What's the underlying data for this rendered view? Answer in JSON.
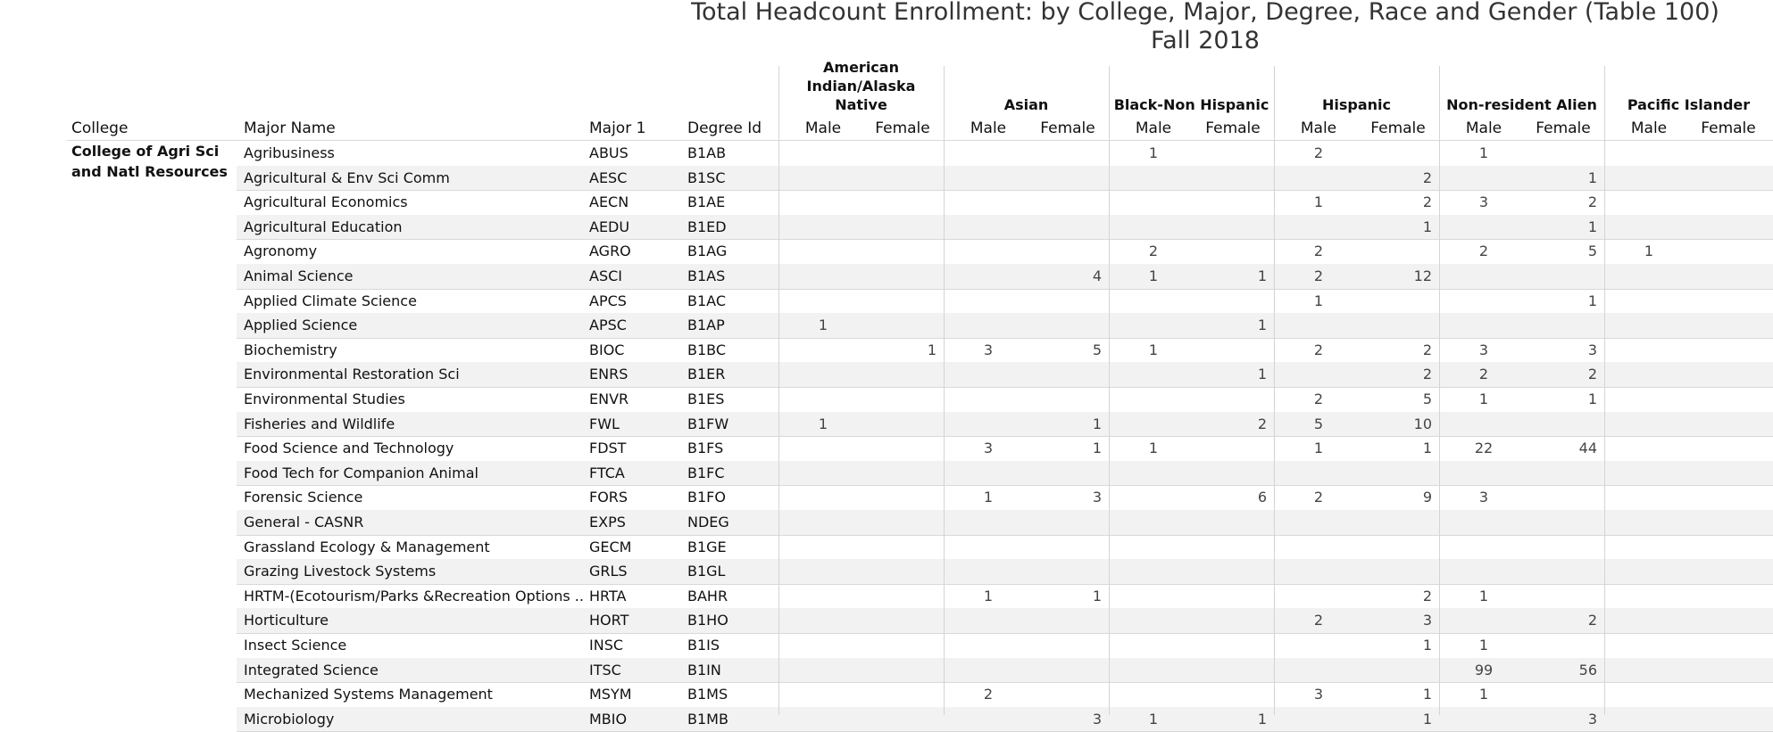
{
  "title_line1": "Total Headcount Enrollment: by College, Major, Degree, Race and Gender (Table 100)",
  "title_line2": "Fall 2018",
  "headers": {
    "college": "College",
    "major_name": "Major Name",
    "major1": "Major 1",
    "degree_id": "Degree Id",
    "groups": [
      {
        "label": "American Indian/Alaska Native",
        "line1": "American",
        "line2": "Indian/Alaska Native"
      },
      {
        "label": "Asian",
        "line1": "",
        "line2": "Asian"
      },
      {
        "label": "Black-Non Hispanic",
        "line1": "",
        "line2": "Black-Non Hispanic"
      },
      {
        "label": "Hispanic",
        "line1": "",
        "line2": "Hispanic"
      },
      {
        "label": "Non-resident Alien",
        "line1": "",
        "line2": "Non-resident Alien"
      },
      {
        "label": "Pacific Islander",
        "line1": "",
        "line2": "Pacific Islander"
      }
    ],
    "male": "Male",
    "female": "Female"
  },
  "college_name": "College of Agri Sci and Natl Resources",
  "rows": [
    {
      "major": "Agribusiness",
      "code": "ABUS",
      "degree": "B1AB",
      "v": [
        "",
        "",
        "",
        "",
        "1",
        "",
        "2",
        "",
        "1",
        "",
        "",
        ""
      ]
    },
    {
      "major": "Agricultural & Env Sci Comm",
      "code": "AESC",
      "degree": "B1SC",
      "v": [
        "",
        "",
        "",
        "",
        "",
        "",
        "",
        "2",
        "",
        "1",
        "",
        ""
      ]
    },
    {
      "major": "Agricultural Economics",
      "code": "AECN",
      "degree": "B1AE",
      "v": [
        "",
        "",
        "",
        "",
        "",
        "",
        "1",
        "2",
        "3",
        "2",
        "",
        ""
      ]
    },
    {
      "major": "Agricultural Education",
      "code": "AEDU",
      "degree": "B1ED",
      "v": [
        "",
        "",
        "",
        "",
        "",
        "",
        "",
        "1",
        "",
        "1",
        "",
        ""
      ]
    },
    {
      "major": "Agronomy",
      "code": "AGRO",
      "degree": "B1AG",
      "v": [
        "",
        "",
        "",
        "",
        "2",
        "",
        "2",
        "",
        "2",
        "5",
        "1",
        ""
      ]
    },
    {
      "major": "Animal Science",
      "code": "ASCI",
      "degree": "B1AS",
      "v": [
        "",
        "",
        "",
        "4",
        "1",
        "1",
        "2",
        "12",
        "",
        "",
        "",
        ""
      ]
    },
    {
      "major": "Applied Climate Science",
      "code": "APCS",
      "degree": "B1AC",
      "v": [
        "",
        "",
        "",
        "",
        "",
        "",
        "1",
        "",
        "",
        "1",
        "",
        ""
      ]
    },
    {
      "major": "Applied Science",
      "code": "APSC",
      "degree": "B1AP",
      "v": [
        "1",
        "",
        "",
        "",
        "",
        "1",
        "",
        "",
        "",
        "",
        "",
        ""
      ]
    },
    {
      "major": "Biochemistry",
      "code": "BIOC",
      "degree": "B1BC",
      "v": [
        "",
        "1",
        "3",
        "5",
        "1",
        "",
        "2",
        "2",
        "3",
        "3",
        "",
        ""
      ]
    },
    {
      "major": "Environmental Restoration Sci",
      "code": "ENRS",
      "degree": "B1ER",
      "v": [
        "",
        "",
        "",
        "",
        "",
        "1",
        "",
        "2",
        "2",
        "2",
        "",
        ""
      ]
    },
    {
      "major": "Environmental Studies",
      "code": "ENVR",
      "degree": "B1ES",
      "v": [
        "",
        "",
        "",
        "",
        "",
        "",
        "2",
        "5",
        "1",
        "1",
        "",
        ""
      ]
    },
    {
      "major": "Fisheries and Wildlife",
      "code": "FWL",
      "degree": "B1FW",
      "v": [
        "1",
        "",
        "",
        "1",
        "",
        "2",
        "5",
        "10",
        "",
        "",
        "",
        ""
      ]
    },
    {
      "major": "Food Science and Technology",
      "code": "FDST",
      "degree": "B1FS",
      "v": [
        "",
        "",
        "3",
        "1",
        "1",
        "",
        "1",
        "1",
        "22",
        "44",
        "",
        ""
      ]
    },
    {
      "major": "Food Tech for Companion Animal",
      "code": "FTCA",
      "degree": "B1FC",
      "v": [
        "",
        "",
        "",
        "",
        "",
        "",
        "",
        "",
        "",
        "",
        "",
        ""
      ]
    },
    {
      "major": "Forensic Science",
      "code": "FORS",
      "degree": "B1FO",
      "v": [
        "",
        "",
        "1",
        "3",
        "",
        "6",
        "2",
        "9",
        "3",
        "",
        "",
        ""
      ]
    },
    {
      "major": "General - CASNR",
      "code": "EXPS",
      "degree": "NDEG",
      "v": [
        "",
        "",
        "",
        "",
        "",
        "",
        "",
        "",
        "",
        "",
        "",
        ""
      ]
    },
    {
      "major": "Grassland Ecology & Management",
      "code": "GECM",
      "degree": "B1GE",
      "v": [
        "",
        "",
        "",
        "",
        "",
        "",
        "",
        "",
        "",
        "",
        "",
        ""
      ]
    },
    {
      "major": "Grazing Livestock Systems",
      "code": "GRLS",
      "degree": "B1GL",
      "v": [
        "",
        "",
        "",
        "",
        "",
        "",
        "",
        "",
        "",
        "",
        "",
        ""
      ]
    },
    {
      "major": "HRTM-(Ecotourism/Parks &Recreation Options ..",
      "code": "HRTA",
      "degree": "BAHR",
      "v": [
        "",
        "",
        "1",
        "1",
        "",
        "",
        "",
        "2",
        "1",
        "",
        "",
        ""
      ]
    },
    {
      "major": "Horticulture",
      "code": "HORT",
      "degree": "B1HO",
      "v": [
        "",
        "",
        "",
        "",
        "",
        "",
        "2",
        "3",
        "",
        "2",
        "",
        ""
      ]
    },
    {
      "major": "Insect Science",
      "code": "INSC",
      "degree": "B1IS",
      "v": [
        "",
        "",
        "",
        "",
        "",
        "",
        "",
        "1",
        "1",
        "",
        "",
        ""
      ]
    },
    {
      "major": "Integrated Science",
      "code": "ITSC",
      "degree": "B1IN",
      "v": [
        "",
        "",
        "",
        "",
        "",
        "",
        "",
        "",
        "99",
        "56",
        "",
        ""
      ]
    },
    {
      "major": "Mechanized Systems Management",
      "code": "MSYM",
      "degree": "B1MS",
      "v": [
        "",
        "",
        "2",
        "",
        "",
        "",
        "3",
        "1",
        "1",
        "",
        "",
        ""
      ]
    },
    {
      "major": "Microbiology",
      "code": "MBIO",
      "degree": "B1MB",
      "v": [
        "",
        "",
        "",
        "3",
        "1",
        "1",
        "",
        "1",
        "",
        "3",
        "",
        ""
      ]
    }
  ]
}
